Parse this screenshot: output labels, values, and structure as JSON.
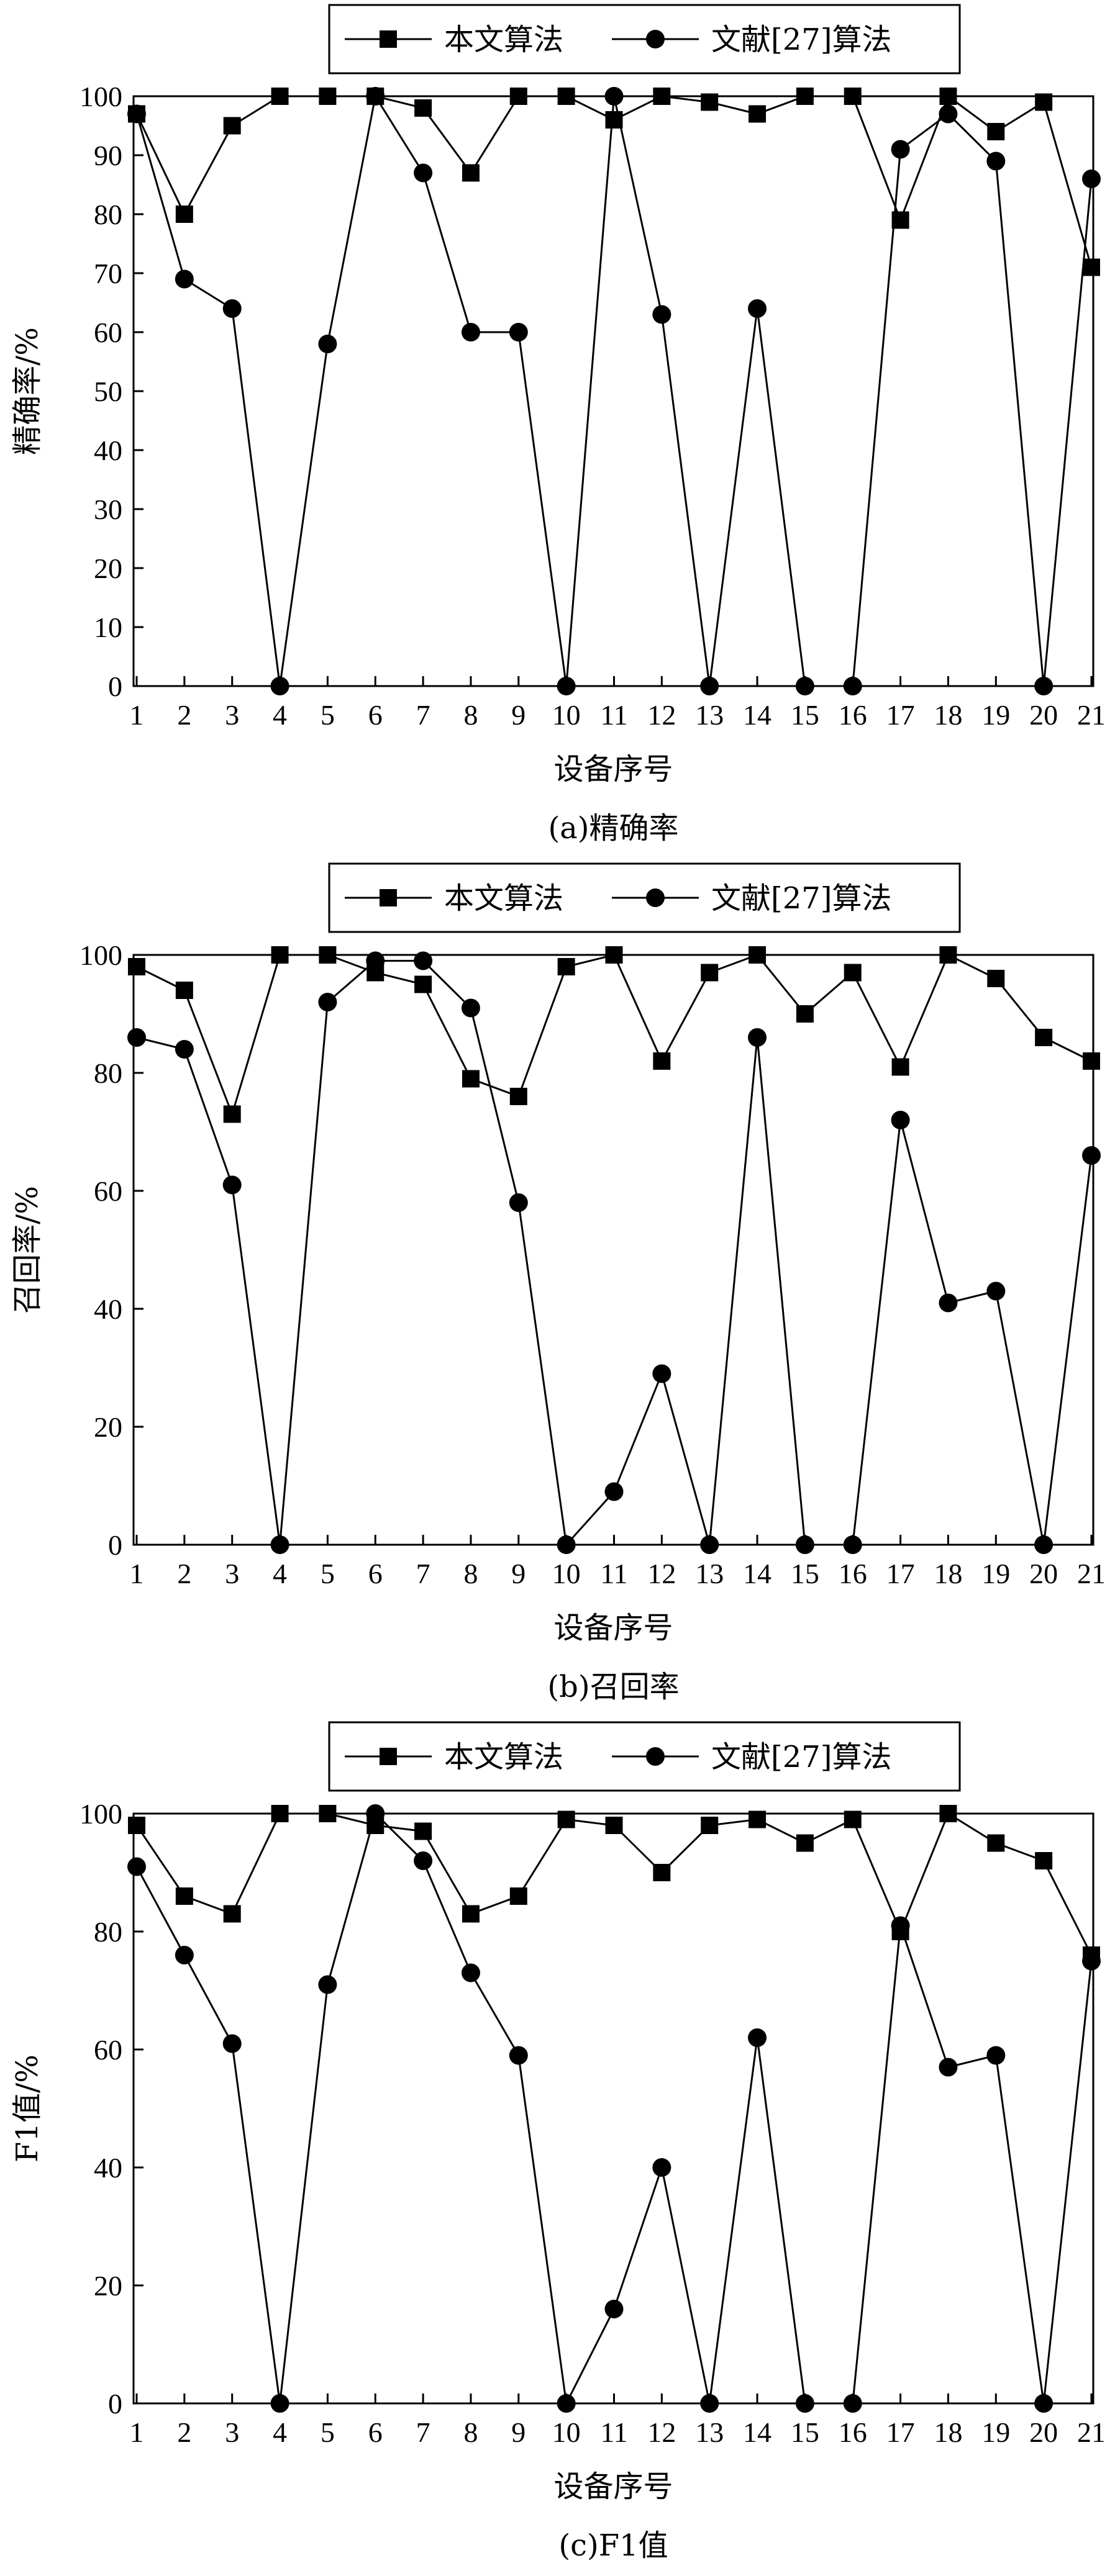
{
  "chart_data": [
    {
      "type": "line",
      "caption": "(a)精确率",
      "xlabel": "设备序号",
      "ylabel": "精确率/%",
      "categories": [
        "1",
        "2",
        "3",
        "4",
        "5",
        "6",
        "7",
        "8",
        "9",
        "10",
        "11",
        "12",
        "13",
        "14",
        "15",
        "16",
        "17",
        "18",
        "19",
        "20",
        "21"
      ],
      "yticks": [
        "0",
        "10",
        "20",
        "30",
        "40",
        "50",
        "60",
        "70",
        "80",
        "90",
        "100"
      ],
      "ylim": [
        0,
        100
      ],
      "legend_position": "top",
      "series": [
        {
          "name": "本文算法",
          "marker": "square",
          "values": [
            97,
            80,
            95,
            100,
            100,
            100,
            98,
            87,
            100,
            100,
            96,
            100,
            99,
            97,
            100,
            100,
            79,
            100,
            94,
            99,
            71
          ]
        },
        {
          "name": "文献[27]算法",
          "marker": "circle",
          "values": [
            97,
            69,
            64,
            0,
            58,
            100,
            87,
            60,
            60,
            0,
            100,
            63,
            0,
            64,
            0,
            0,
            91,
            97,
            89,
            0,
            86
          ]
        }
      ]
    },
    {
      "type": "line",
      "caption": "(b)召回率",
      "xlabel": "设备序号",
      "ylabel": "召回率/%",
      "categories": [
        "1",
        "2",
        "3",
        "4",
        "5",
        "6",
        "7",
        "8",
        "9",
        "10",
        "11",
        "12",
        "13",
        "14",
        "15",
        "16",
        "17",
        "18",
        "19",
        "20",
        "21"
      ],
      "yticks": [
        "0",
        "20",
        "40",
        "60",
        "80",
        "100"
      ],
      "ylim": [
        0,
        100
      ],
      "legend_position": "top",
      "series": [
        {
          "name": "本文算法",
          "marker": "square",
          "values": [
            98,
            94,
            73,
            100,
            100,
            97,
            95,
            79,
            76,
            98,
            100,
            82,
            97,
            100,
            90,
            97,
            81,
            100,
            96,
            86,
            82
          ]
        },
        {
          "name": "文献[27]算法",
          "marker": "circle",
          "values": [
            86,
            84,
            61,
            0,
            92,
            99,
            99,
            91,
            58,
            0,
            9,
            29,
            0,
            86,
            0,
            0,
            72,
            41,
            43,
            0,
            66
          ]
        }
      ]
    },
    {
      "type": "line",
      "caption": "(c)F1值",
      "xlabel": "设备序号",
      "ylabel": "F1值/%",
      "categories": [
        "1",
        "2",
        "3",
        "4",
        "5",
        "6",
        "7",
        "8",
        "9",
        "10",
        "11",
        "12",
        "13",
        "14",
        "15",
        "16",
        "17",
        "18",
        "19",
        "20",
        "21"
      ],
      "yticks": [
        "0",
        "20",
        "40",
        "60",
        "80",
        "100"
      ],
      "ylim": [
        0,
        100
      ],
      "legend_position": "top",
      "series": [
        {
          "name": "本文算法",
          "marker": "square",
          "values": [
            98,
            86,
            83,
            100,
            100,
            98,
            97,
            83,
            86,
            99,
            98,
            90,
            98,
            99,
            95,
            99,
            80,
            100,
            95,
            92,
            76
          ]
        },
        {
          "name": "文献[27]算法",
          "marker": "circle",
          "values": [
            91,
            76,
            61,
            0,
            71,
            100,
            92,
            73,
            59,
            0,
            16,
            40,
            0,
            62,
            0,
            0,
            81,
            57,
            59,
            0,
            75
          ]
        }
      ]
    }
  ]
}
